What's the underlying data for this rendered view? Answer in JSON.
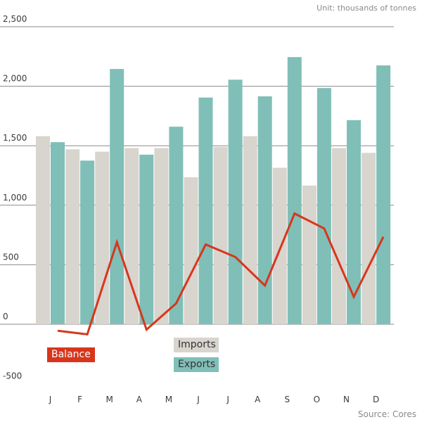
{
  "unit_label": "Unit: thousands of tonnes",
  "source_label": "Source: Cores",
  "colors": {
    "imports": "#d8d4ce",
    "exports": "#80bfb7",
    "balance": "#d7361c",
    "grid": "#8a8a8a"
  },
  "chart_data": {
    "type": "bar",
    "categories": [
      "J",
      "F",
      "M",
      "A",
      "M",
      "J",
      "J",
      "A",
      "S",
      "O",
      "N",
      "D"
    ],
    "series": [
      {
        "name": "Imports",
        "type": "bar",
        "values": [
          1580,
          1470,
          1450,
          1480,
          1480,
          1235,
          1490,
          1580,
          1315,
          1165,
          1480,
          1440
        ]
      },
      {
        "name": "Exports",
        "type": "bar",
        "values": [
          1530,
          1375,
          2145,
          1425,
          1660,
          1905,
          2055,
          1915,
          2245,
          1985,
          1715,
          2175
        ]
      },
      {
        "name": "Balance",
        "type": "line",
        "values": [
          -55,
          -85,
          690,
          -45,
          175,
          670,
          565,
          325,
          930,
          805,
          230,
          735
        ]
      }
    ],
    "yticks": [
      "2,500",
      "2,000",
      "1,500",
      "1,000",
      "500",
      "0",
      "-500"
    ],
    "ylim": [
      -500,
      2500
    ],
    "grid": true,
    "legend": [
      "Balance",
      "Imports",
      "Exports"
    ]
  }
}
